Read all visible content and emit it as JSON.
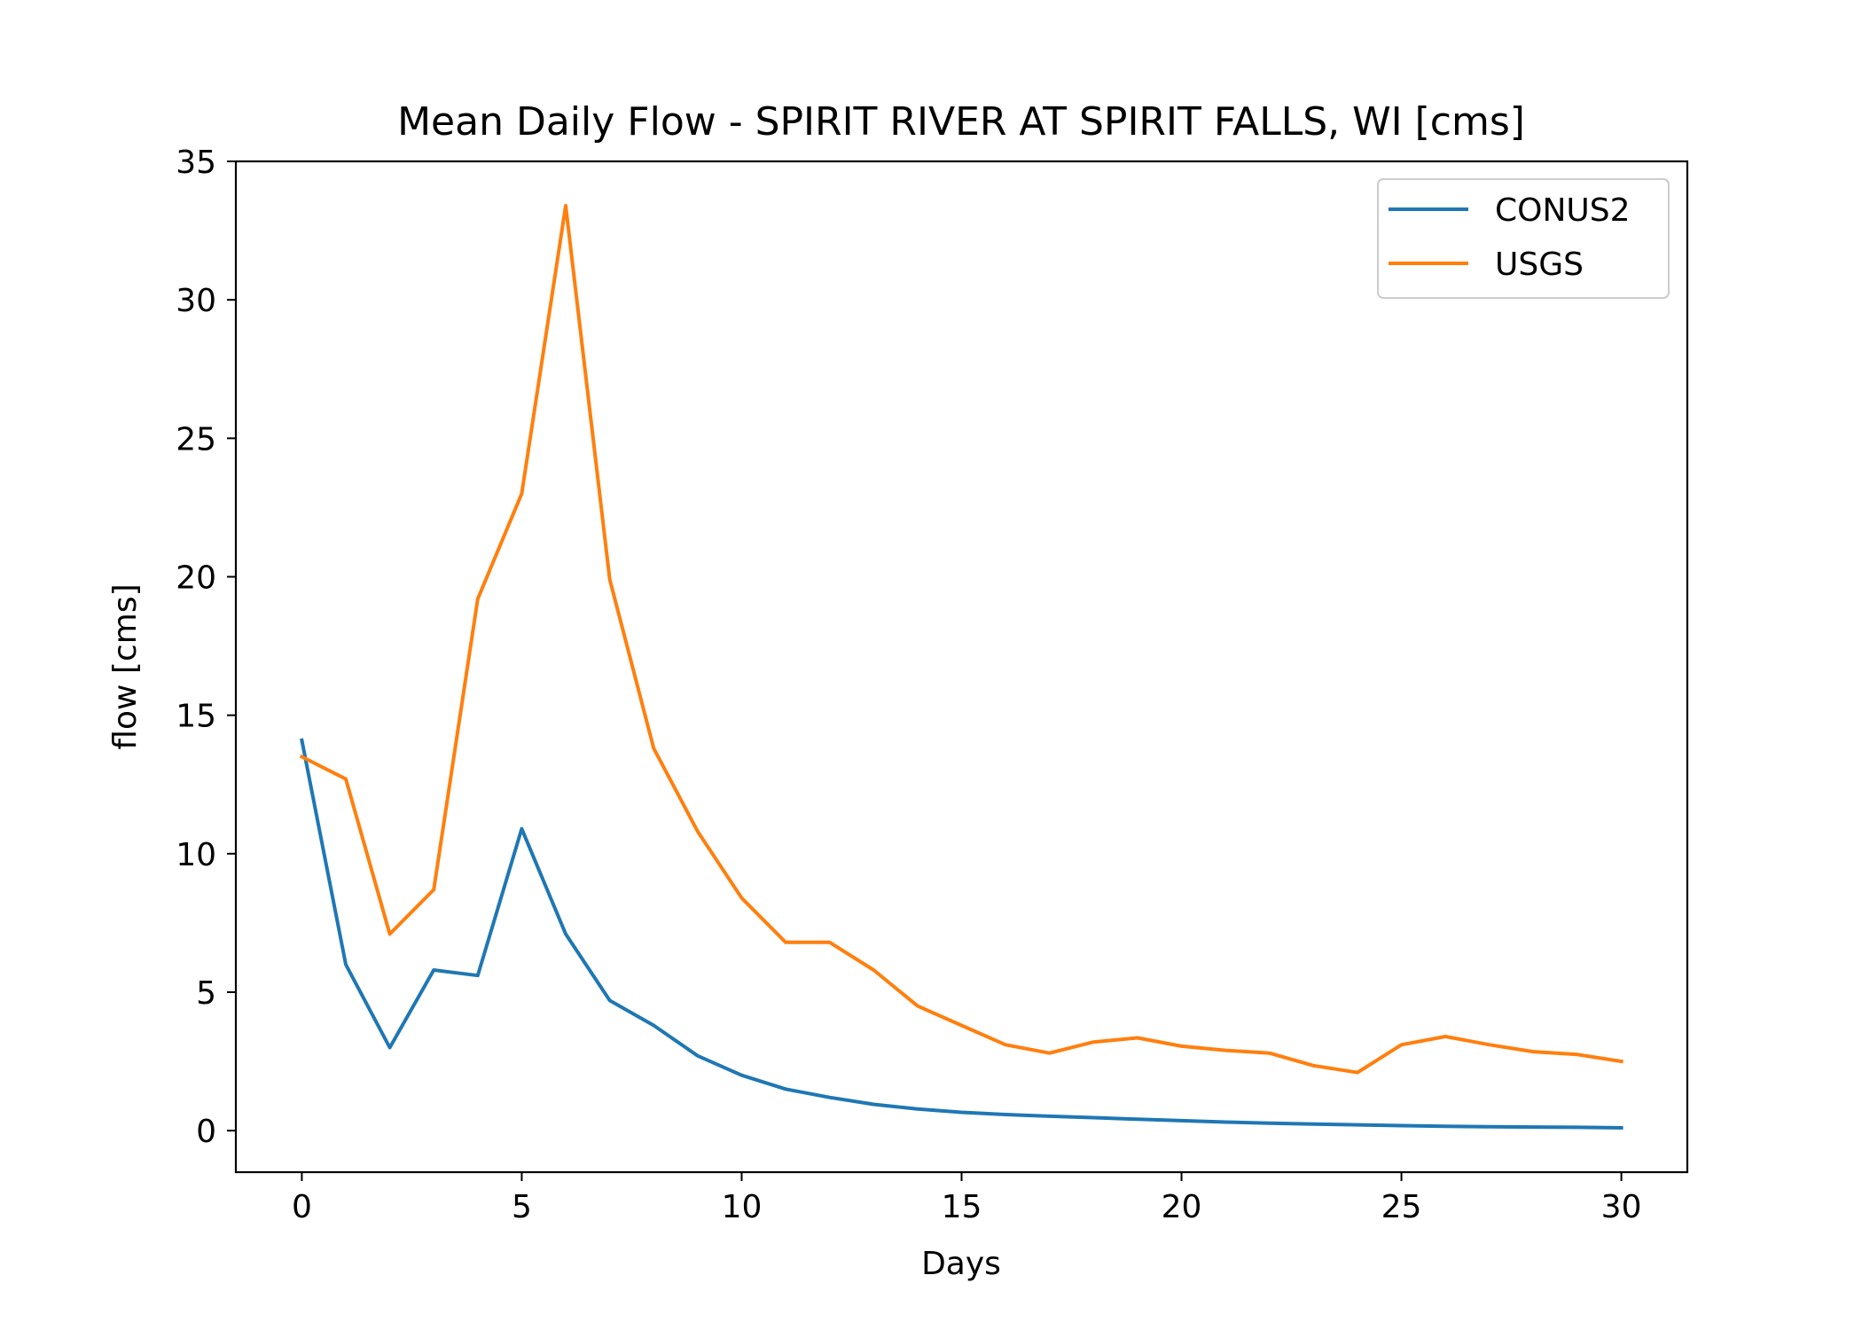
{
  "chart_data": {
    "type": "line",
    "title": "Mean Daily Flow - SPIRIT RIVER AT SPIRIT FALLS, WI [cms]",
    "xlabel": "Days",
    "ylabel": "flow [cms]",
    "xlim": [
      -1.5,
      31.5
    ],
    "ylim": [
      -1.5,
      35
    ],
    "xticks": [
      0,
      5,
      10,
      15,
      20,
      25,
      30
    ],
    "yticks": [
      0,
      5,
      10,
      15,
      20,
      25,
      30,
      35
    ],
    "grid": false,
    "legend_position": "top-right",
    "x": [
      0,
      1,
      2,
      3,
      4,
      5,
      6,
      7,
      8,
      9,
      10,
      11,
      12,
      13,
      14,
      15,
      16,
      17,
      18,
      19,
      20,
      21,
      22,
      23,
      24,
      25,
      26,
      27,
      28,
      29,
      30
    ],
    "series": [
      {
        "name": "CONUS2",
        "color": "#1f77b4",
        "values": [
          14.1,
          6.0,
          3.0,
          5.8,
          5.6,
          10.9,
          7.1,
          4.7,
          3.8,
          2.7,
          2.0,
          1.5,
          1.2,
          0.95,
          0.78,
          0.66,
          0.58,
          0.52,
          0.47,
          0.41,
          0.36,
          0.31,
          0.27,
          0.24,
          0.21,
          0.18,
          0.16,
          0.14,
          0.13,
          0.12,
          0.1
        ]
      },
      {
        "name": "USGS",
        "color": "#ff7f0e",
        "values": [
          13.5,
          12.7,
          7.1,
          8.7,
          19.2,
          23.0,
          33.4,
          19.9,
          13.8,
          10.8,
          8.4,
          6.8,
          6.8,
          5.8,
          4.5,
          3.8,
          3.1,
          2.8,
          3.2,
          3.35,
          3.05,
          2.9,
          2.8,
          2.35,
          2.1,
          3.1,
          3.4,
          3.1,
          2.85,
          2.75,
          2.5
        ]
      }
    ]
  }
}
